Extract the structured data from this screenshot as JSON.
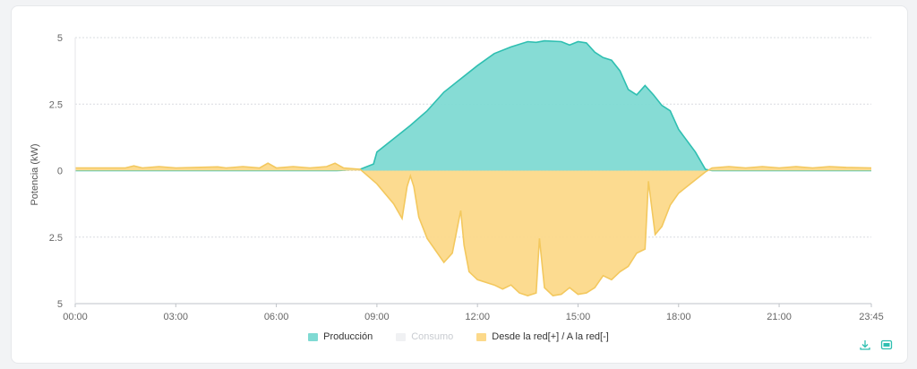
{
  "chart_data": {
    "type": "area",
    "ylabel": "Potencia  (kW)",
    "y_tick_labels": [
      "5",
      "2.5",
      "0",
      "2.5",
      "5"
    ],
    "y_ticks": [
      5,
      2.5,
      0,
      -2.5,
      -5
    ],
    "ylim": [
      -5,
      5
    ],
    "x_tick_labels": [
      "00:00",
      "03:00",
      "06:00",
      "09:00",
      "12:00",
      "15:00",
      "18:00",
      "21:00",
      "23:45"
    ],
    "x_ticks": [
      0,
      3,
      6,
      9,
      12,
      15,
      18,
      21,
      23.75
    ],
    "xlim": [
      0,
      23.75
    ],
    "grid": true,
    "legend_position": "bottom-center",
    "series": [
      {
        "name": "Producción",
        "color": "#2fbfb1",
        "fill": "#7fdad3",
        "points": [
          [
            0,
            0
          ],
          [
            7.8,
            0
          ],
          [
            8.5,
            0.05
          ],
          [
            8.9,
            0.25
          ],
          [
            9.0,
            0.7
          ],
          [
            9.5,
            1.2
          ],
          [
            10.0,
            1.7
          ],
          [
            10.5,
            2.25
          ],
          [
            11.0,
            2.95
          ],
          [
            11.5,
            3.45
          ],
          [
            12.0,
            3.95
          ],
          [
            12.5,
            4.4
          ],
          [
            13.0,
            4.65
          ],
          [
            13.5,
            4.85
          ],
          [
            13.75,
            4.82
          ],
          [
            14.0,
            4.88
          ],
          [
            14.5,
            4.85
          ],
          [
            14.75,
            4.72
          ],
          [
            15.0,
            4.85
          ],
          [
            15.25,
            4.8
          ],
          [
            15.5,
            4.45
          ],
          [
            15.75,
            4.25
          ],
          [
            16.0,
            4.15
          ],
          [
            16.25,
            3.75
          ],
          [
            16.5,
            3.05
          ],
          [
            16.75,
            2.85
          ],
          [
            17.0,
            3.2
          ],
          [
            17.25,
            2.85
          ],
          [
            17.5,
            2.45
          ],
          [
            17.75,
            2.25
          ],
          [
            18.0,
            1.55
          ],
          [
            18.5,
            0.7
          ],
          [
            18.8,
            0.05
          ],
          [
            19.0,
            0
          ],
          [
            23.75,
            0
          ]
        ]
      },
      {
        "name": "Consumo",
        "color": "#e6e7ea",
        "fill": "#f0f1f3",
        "points": []
      },
      {
        "name": "Desde la red[+] / A la red[-]",
        "color": "#f3c85e",
        "fill": "#fcd98a",
        "points": [
          [
            0,
            0.1
          ],
          [
            1.5,
            0.1
          ],
          [
            1.75,
            0.18
          ],
          [
            2.0,
            0.1
          ],
          [
            2.5,
            0.15
          ],
          [
            3.0,
            0.1
          ],
          [
            4.25,
            0.14
          ],
          [
            4.5,
            0.1
          ],
          [
            5.0,
            0.15
          ],
          [
            5.5,
            0.1
          ],
          [
            5.75,
            0.28
          ],
          [
            6.0,
            0.1
          ],
          [
            6.5,
            0.15
          ],
          [
            7.0,
            0.1
          ],
          [
            7.5,
            0.15
          ],
          [
            7.75,
            0.28
          ],
          [
            8.0,
            0.1
          ],
          [
            8.5,
            0.05
          ],
          [
            9.0,
            -0.5
          ],
          [
            9.5,
            -1.25
          ],
          [
            9.75,
            -1.8
          ],
          [
            9.9,
            -0.6
          ],
          [
            10.0,
            -0.2
          ],
          [
            10.1,
            -0.6
          ],
          [
            10.25,
            -1.75
          ],
          [
            10.5,
            -2.55
          ],
          [
            11.0,
            -3.45
          ],
          [
            11.25,
            -3.1
          ],
          [
            11.5,
            -1.5
          ],
          [
            11.6,
            -2.8
          ],
          [
            11.75,
            -3.8
          ],
          [
            12.0,
            -4.1
          ],
          [
            12.5,
            -4.3
          ],
          [
            12.75,
            -4.45
          ],
          [
            13.0,
            -4.3
          ],
          [
            13.25,
            -4.6
          ],
          [
            13.5,
            -4.7
          ],
          [
            13.75,
            -4.6
          ],
          [
            13.85,
            -2.55
          ],
          [
            14.0,
            -4.4
          ],
          [
            14.25,
            -4.7
          ],
          [
            14.5,
            -4.65
          ],
          [
            14.75,
            -4.4
          ],
          [
            15.0,
            -4.65
          ],
          [
            15.25,
            -4.6
          ],
          [
            15.5,
            -4.4
          ],
          [
            15.75,
            -3.95
          ],
          [
            16.0,
            -4.1
          ],
          [
            16.25,
            -3.8
          ],
          [
            16.5,
            -3.6
          ],
          [
            16.75,
            -3.1
          ],
          [
            17.0,
            -2.95
          ],
          [
            17.1,
            -0.4
          ],
          [
            17.3,
            -2.4
          ],
          [
            17.5,
            -2.1
          ],
          [
            17.75,
            -1.3
          ],
          [
            18.0,
            -0.85
          ],
          [
            18.5,
            -0.35
          ],
          [
            18.8,
            -0.05
          ],
          [
            19.0,
            0.1
          ],
          [
            19.5,
            0.15
          ],
          [
            20.0,
            0.1
          ],
          [
            20.5,
            0.15
          ],
          [
            21.0,
            0.1
          ],
          [
            21.5,
            0.15
          ],
          [
            22.0,
            0.1
          ],
          [
            22.5,
            0.15
          ],
          [
            23.0,
            0.12
          ],
          [
            23.75,
            0.1
          ]
        ]
      }
    ]
  },
  "legend": [
    {
      "label": "Producción",
      "color": "#7fdad3",
      "active": true
    },
    {
      "label": "Consumo",
      "color": "#f0f1f3",
      "active": false
    },
    {
      "label": "Desde la red[+] / A la red[-]",
      "color": "#fcd98a",
      "active": true
    }
  ],
  "toolbar": {
    "download_icon": "download-icon",
    "image_icon": "save-image-icon",
    "icon_color": "#2fbfb1"
  }
}
